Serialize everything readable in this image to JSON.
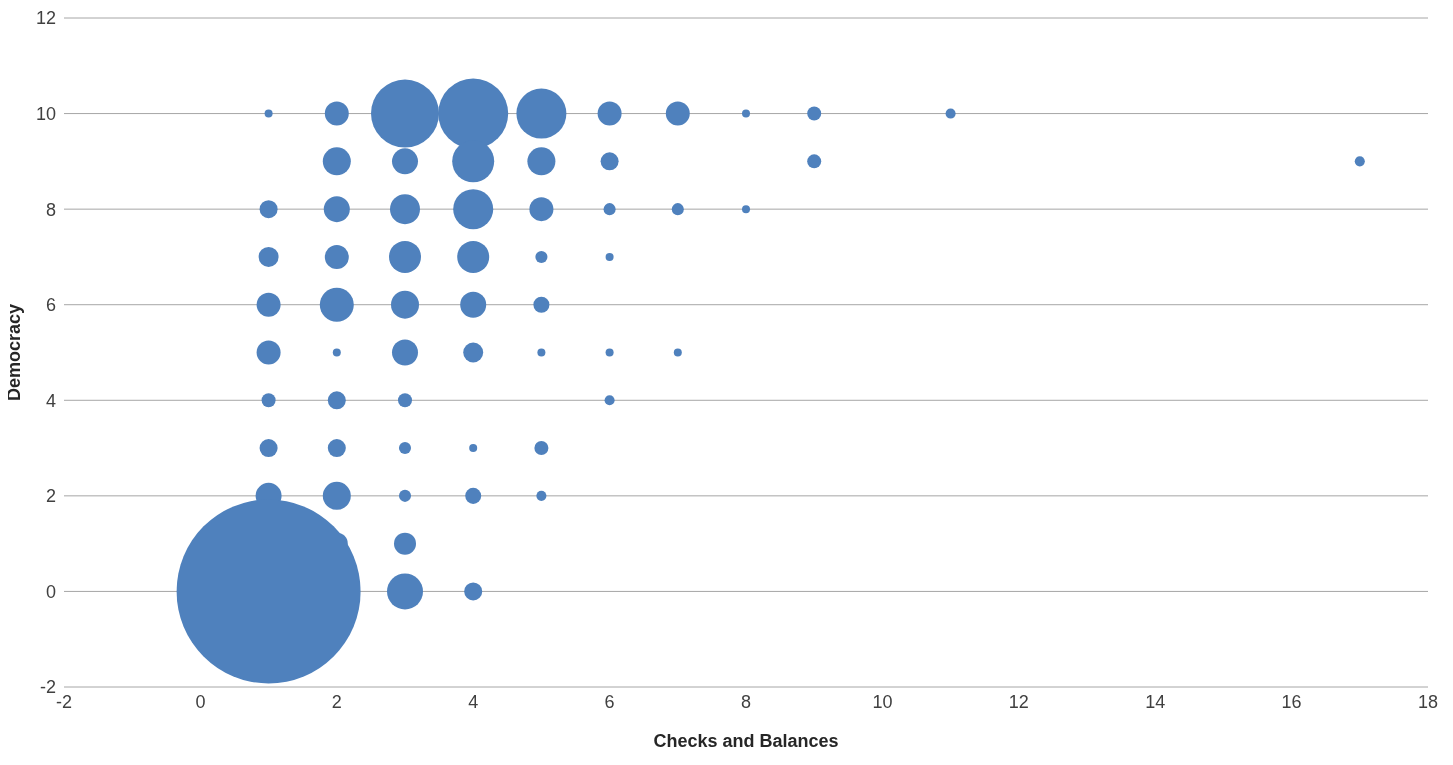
{
  "chart_data": {
    "type": "bubble",
    "xlabel": "Checks and Balances",
    "ylabel": "Democracy",
    "xlim": [
      -2,
      18
    ],
    "xticks": [
      -2,
      0,
      2,
      4,
      6,
      8,
      10,
      12,
      14,
      16,
      18
    ],
    "ylim": [
      -2,
      12
    ],
    "yticks": [
      -2,
      0,
      2,
      4,
      6,
      8,
      10,
      12
    ],
    "grid": "y",
    "legend": false,
    "series": [
      {
        "color": "#4f81bd",
        "x": [
          1,
          2,
          3,
          4,
          5,
          6,
          7,
          8,
          9,
          11,
          2,
          3,
          4,
          5,
          6,
          9,
          17,
          1,
          2,
          3,
          4,
          5,
          6,
          7,
          8,
          1,
          2,
          3,
          4,
          5,
          6,
          1,
          2,
          3,
          4,
          5,
          1,
          2,
          3,
          4,
          5,
          6,
          7,
          1,
          2,
          3,
          6,
          1,
          2,
          3,
          4,
          5,
          1,
          2,
          3,
          4,
          5,
          2,
          3,
          3,
          4,
          1
        ],
        "values": [
          10,
          10,
          10,
          10,
          10,
          10,
          10,
          10,
          10,
          10,
          9,
          9,
          9,
          9,
          9,
          9,
          9,
          8,
          8,
          8,
          8,
          8,
          8,
          8,
          8,
          7,
          7,
          7,
          7,
          7,
          7,
          6,
          6,
          6,
          6,
          6,
          5,
          5,
          5,
          5,
          5,
          5,
          5,
          4,
          4,
          4,
          4,
          3,
          3,
          3,
          3,
          3,
          2,
          2,
          2,
          2,
          2,
          1,
          1,
          0,
          0,
          0
        ],
        "sizes": [
          0.0019,
          0.017,
          0.1366,
          0.1447,
          0.0738,
          0.017,
          0.017,
          0.0019,
          0.0058,
          0.003,
          0.0232,
          0.02,
          0.0521,
          0.0232,
          0.0096,
          0.0058,
          0.003,
          0.0096,
          0.02,
          0.0266,
          0.0473,
          0.017,
          0.0043,
          0.0043,
          0.0019,
          0.0118,
          0.017,
          0.0302,
          0.0302,
          0.0043,
          0.0019,
          0.017,
          0.0341,
          0.0232,
          0.02,
          0.0076,
          0.017,
          0.0019,
          0.02,
          0.0118,
          0.0019,
          0.0019,
          0.0019,
          0.0058,
          0.0096,
          0.0058,
          0.003,
          0.0096,
          0.0096,
          0.0043,
          0.0019,
          0.0058,
          0.02,
          0.0232,
          0.0043,
          0.0076,
          0.003,
          0.0143,
          0.0143,
          0.0383,
          0.0096,
          1
        ]
      }
    ]
  }
}
